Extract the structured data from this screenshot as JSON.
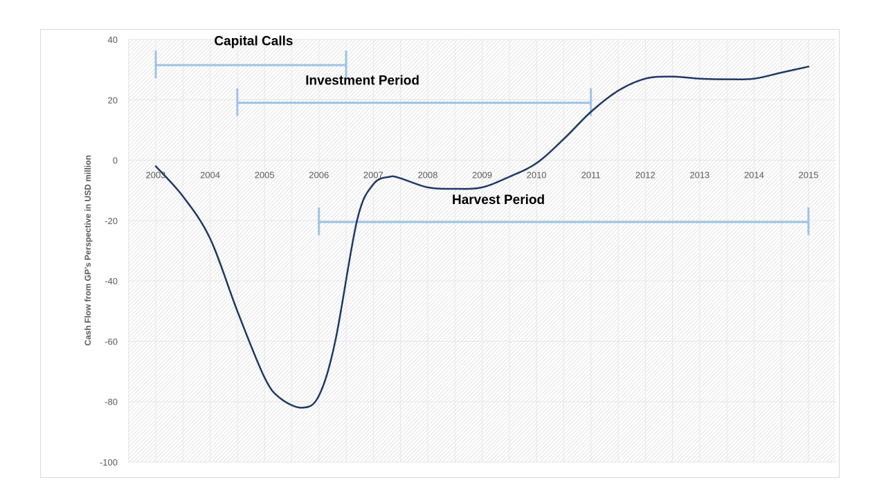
{
  "chart_data": {
    "type": "line",
    "title": "",
    "xlabel": "",
    "ylabel": "Cash Flow from GP’s Perspective  in USD million",
    "x": [
      2003,
      2004,
      2005,
      2006,
      2007,
      2008,
      2009,
      2010,
      2011,
      2012,
      2013,
      2014,
      2015
    ],
    "ylim": [
      -100,
      40
    ],
    "yticks": [
      40,
      20,
      0,
      -20,
      -40,
      -60,
      -80,
      -100
    ],
    "grid": true,
    "legend": "none",
    "curve": {
      "x": [
        2003,
        2003.5,
        2004,
        2004.5,
        2005,
        2005.3,
        2005.7,
        2006,
        2006.3,
        2006.7,
        2007,
        2007.3,
        2007.5,
        2008,
        2008.5,
        2009,
        2009.5,
        2010,
        2010.5,
        2011,
        2011.5,
        2012,
        2012.5,
        2013,
        2013.5,
        2014,
        2014.5,
        2015
      ],
      "y": [
        -2,
        -12,
        -26,
        -50,
        -72,
        -79,
        -82,
        -78,
        -60,
        -20,
        -8,
        -5.5,
        -6,
        -9,
        -9.5,
        -9,
        -5.5,
        -1,
        7,
        16,
        23,
        27,
        27.7,
        27,
        26.8,
        27,
        29,
        31
      ]
    },
    "annotations": [
      {
        "label": "Capital Calls",
        "start": 2003,
        "end": 2006.5,
        "y": 31.5,
        "label_year": 2004.8,
        "label_y": 38
      },
      {
        "label": "Investment Period",
        "start": 2004.5,
        "end": 2011,
        "y": 19,
        "label_year": 2006.8,
        "label_y": 25
      },
      {
        "label": "Harvest Period",
        "start": 2006,
        "end": 2015,
        "y": -20.5,
        "label_year": 2009.3,
        "label_y": -14.5
      }
    ],
    "colors": {
      "line": "#1f3864",
      "annotation": "#9dc3e6",
      "grid": "#e6e6e6",
      "hatch": "#d3d3d3"
    }
  }
}
